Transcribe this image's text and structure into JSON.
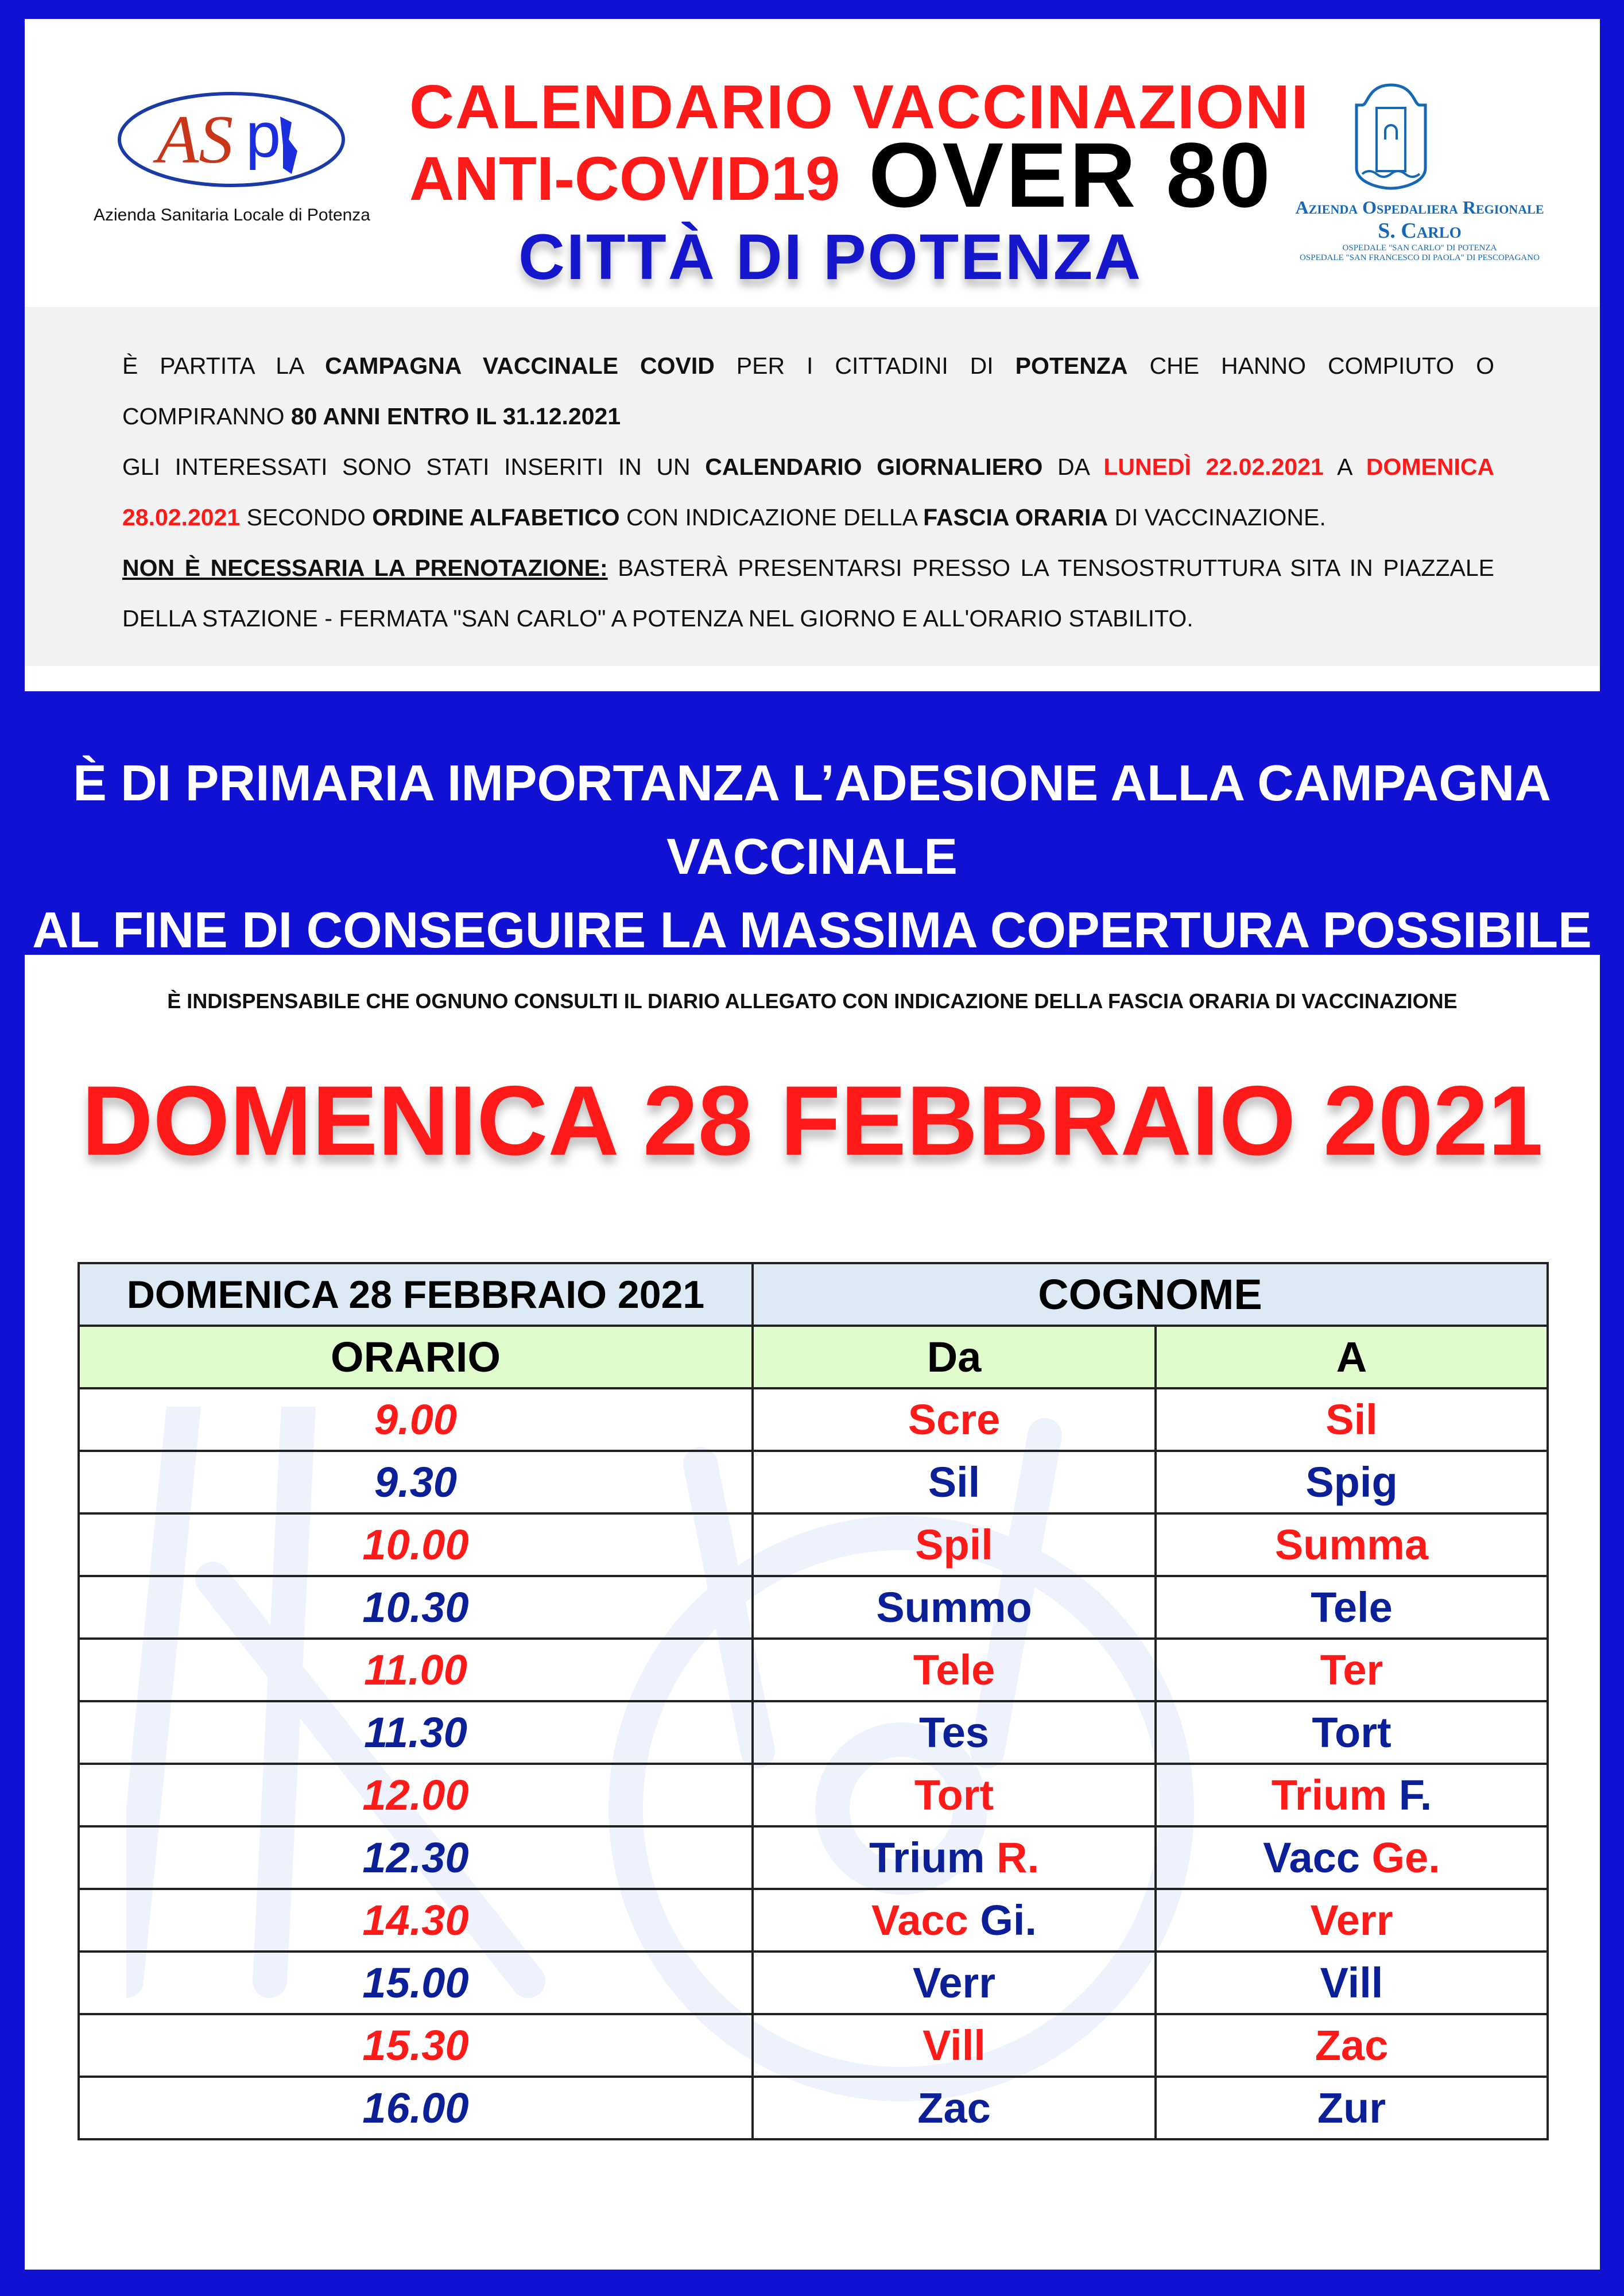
{
  "header": {
    "title_line1": "CALENDARIO VACCINAZIONI",
    "title_line2_red": "ANTI-COVID19",
    "title_line2_black": "OVER 80",
    "subtitle": "CITTÀ DI POTENZA",
    "left_logo": {
      "text": "ASP",
      "caption": "Azienda Sanitaria Locale di Potenza"
    },
    "right_logo": {
      "line1": "Azienda Ospedaliera Regionale",
      "line2": "S. Carlo",
      "line3": "OSPEDALE \"SAN CARLO\" DI POTENZA",
      "line4": "OSPEDALE \"SAN FRANCESCO DI PAOLA\" DI PESCOPAGANO"
    }
  },
  "intro": {
    "lines": [
      {
        "justify": true,
        "segments": [
          {
            "t": "È PARTITA LA ",
            "s": "n"
          },
          {
            "t": "CAMPAGNA VACCINALE COVID",
            "s": "b"
          },
          {
            "t": " PER I CITTADINI DI ",
            "s": "n"
          },
          {
            "t": "POTENZA",
            "s": "b"
          },
          {
            "t": " CHE HANNO COMPIUTO O",
            "s": "n"
          }
        ]
      },
      {
        "justify": false,
        "segments": [
          {
            "t": "COMPIRANNO ",
            "s": "n"
          },
          {
            "t": "80 ANNI ENTRO IL 31.12.2021",
            "s": "b"
          }
        ]
      },
      {
        "justify": true,
        "segments": [
          {
            "t": "GLI INTERESSATI SONO STATI INSERITI IN UN ",
            "s": "n"
          },
          {
            "t": "CALENDARIO GIORNALIERO",
            "s": "b"
          },
          {
            "t": " DA ",
            "s": "n"
          },
          {
            "t": "LUNEDÌ 22.02.2021",
            "s": "r"
          },
          {
            "t": " A ",
            "s": "n"
          },
          {
            "t": "DOMENICA",
            "s": "r"
          }
        ]
      },
      {
        "justify": false,
        "segments": [
          {
            "t": "28.02.2021",
            "s": "r"
          },
          {
            "t": " SECONDO ",
            "s": "n"
          },
          {
            "t": "ORDINE ALFABETICO",
            "s": "b"
          },
          {
            "t": " CON INDICAZIONE DELLA ",
            "s": "n"
          },
          {
            "t": "FASCIA ORARIA",
            "s": "b"
          },
          {
            "t": " DI VACCINAZIONE.",
            "s": "n"
          }
        ]
      },
      {
        "justify": true,
        "segments": [
          {
            "t": "NON È NECESSARIA LA PRENOTAZIONE:",
            "s": "u"
          },
          {
            "t": " BASTERÀ PRESENTARSI PRESSO LA TENSOSTRUTTURA SITA IN PIAZZALE",
            "s": "n"
          }
        ]
      },
      {
        "justify": false,
        "segments": [
          {
            "t": "DELLA STAZIONE - FERMATA \"SAN CARLO\" A POTENZA NEL GIORNO E ALL'ORARIO STABILITO.",
            "s": "n"
          }
        ]
      }
    ]
  },
  "slogan": {
    "line1": "È DI PRIMARIA IMPORTANZA L’ADESIONE ALLA CAMPAGNA VACCINALE",
    "line2": "AL FINE DI CONSEGUIRE LA MASSIMA COPERTURA POSSIBILE"
  },
  "schedule": {
    "note": "È INDISPENSABILE CHE OGNUNO CONSULTI IL DIARIO ALLEGATO CON INDICAZIONE DELLA FASCIA ORARIA DI VACCINAZIONE",
    "big_date": "DOMENICA 28 FEBBRAIO 2021",
    "table": {
      "date_header": "DOMENICA 28 FEBBRAIO 2021",
      "surname_header": "COGNOME",
      "col_time": "ORARIO",
      "col_from": "Da",
      "col_to": "A",
      "rows": [
        {
          "time": "9.00",
          "c": "red",
          "from": [
            {
              "t": "Scre",
              "c": "red"
            }
          ],
          "to": [
            {
              "t": "Sil",
              "c": "red"
            }
          ]
        },
        {
          "time": "9.30",
          "c": "blue",
          "from": [
            {
              "t": "Sil",
              "c": "blue"
            }
          ],
          "to": [
            {
              "t": "Spig",
              "c": "blue"
            }
          ]
        },
        {
          "time": "10.00",
          "c": "red",
          "from": [
            {
              "t": "Spil",
              "c": "red"
            }
          ],
          "to": [
            {
              "t": "Summa",
              "c": "red"
            }
          ]
        },
        {
          "time": "10.30",
          "c": "blue",
          "from": [
            {
              "t": "Summo",
              "c": "blue"
            }
          ],
          "to": [
            {
              "t": "Tele",
              "c": "blue"
            }
          ]
        },
        {
          "time": "11.00",
          "c": "red",
          "from": [
            {
              "t": "Tele",
              "c": "red"
            }
          ],
          "to": [
            {
              "t": "Ter",
              "c": "red"
            }
          ]
        },
        {
          "time": "11.30",
          "c": "blue",
          "from": [
            {
              "t": "Tes",
              "c": "blue"
            }
          ],
          "to": [
            {
              "t": "Tort",
              "c": "blue"
            }
          ]
        },
        {
          "time": "12.00",
          "c": "red",
          "from": [
            {
              "t": "Tort",
              "c": "red"
            }
          ],
          "to": [
            {
              "t": "Trium ",
              "c": "red"
            },
            {
              "t": "F.",
              "c": "blue"
            }
          ]
        },
        {
          "time": "12.30",
          "c": "blue",
          "from": [
            {
              "t": "Trium ",
              "c": "blue"
            },
            {
              "t": "R.",
              "c": "red"
            }
          ],
          "to": [
            {
              "t": "Vacc ",
              "c": "blue"
            },
            {
              "t": "Ge.",
              "c": "red"
            }
          ]
        },
        {
          "time": "14.30",
          "c": "red",
          "from": [
            {
              "t": "Vacc ",
              "c": "red"
            },
            {
              "t": "Gi.",
              "c": "blue"
            }
          ],
          "to": [
            {
              "t": "Verr",
              "c": "red"
            }
          ]
        },
        {
          "time": "15.00",
          "c": "blue",
          "from": [
            {
              "t": "Verr",
              "c": "blue"
            }
          ],
          "to": [
            {
              "t": "Vill",
              "c": "blue"
            }
          ]
        },
        {
          "time": "15.30",
          "c": "red",
          "from": [
            {
              "t": "Vill",
              "c": "red"
            }
          ],
          "to": [
            {
              "t": "Zac",
              "c": "red"
            }
          ]
        },
        {
          "time": "16.00",
          "c": "blue",
          "from": [
            {
              "t": "Zac",
              "c": "blue"
            }
          ],
          "to": [
            {
              "t": "Zur",
              "c": "blue"
            }
          ]
        }
      ]
    }
  },
  "colors": {
    "frame": "#1111d4",
    "red": "#ff1a1a",
    "navy": "#0b1f96",
    "header_blue": "#dde9f5",
    "header_green": "#e0fccc"
  }
}
